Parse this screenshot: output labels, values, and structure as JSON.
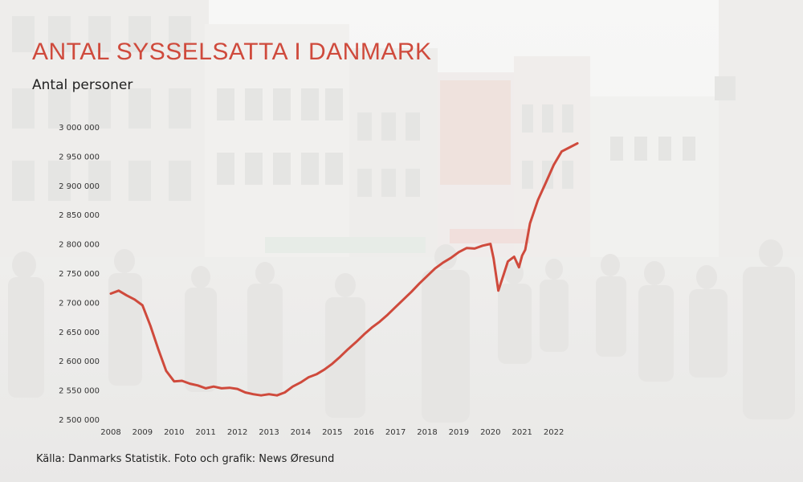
{
  "header": {
    "title": "ANTAL SYSSELSATTA I DANMARK",
    "subtitle": "Antal personer"
  },
  "footer": {
    "source": "Källa: Danmarks Statistik. Foto och grafik: News Øresund"
  },
  "colors": {
    "accent": "#cf4a3c",
    "background": "#f2f1ef"
  },
  "chart_data": {
    "type": "line",
    "title": "ANTAL SYSSELSATTA I DANMARK",
    "ylabel": "Antal personer",
    "xlabel": "",
    "ylim": [
      2500000,
      3000000
    ],
    "xlim": [
      2008,
      2022.9
    ],
    "grid": false,
    "y_ticks": [
      {
        "value": 3000000,
        "label": "3 000 000"
      },
      {
        "value": 2950000,
        "label": "2 950 000"
      },
      {
        "value": 2900000,
        "label": "2 900 000"
      },
      {
        "value": 2850000,
        "label": "2 850 000"
      },
      {
        "value": 2800000,
        "label": "2 800 000"
      },
      {
        "value": 2750000,
        "label": "2 750 000"
      },
      {
        "value": 2700000,
        "label": "2 700 000"
      },
      {
        "value": 2650000,
        "label": "2 650 000"
      },
      {
        "value": 2600000,
        "label": "2 600 000"
      },
      {
        "value": 2550000,
        "label": "2 550 000"
      },
      {
        "value": 2500000,
        "label": "2 500 000"
      }
    ],
    "x_ticks": [
      {
        "value": 2008,
        "label": "2008"
      },
      {
        "value": 2009,
        "label": "2009"
      },
      {
        "value": 2010,
        "label": "2010"
      },
      {
        "value": 2011,
        "label": "2011"
      },
      {
        "value": 2012,
        "label": "2012"
      },
      {
        "value": 2013,
        "label": "2013"
      },
      {
        "value": 2014,
        "label": "2014"
      },
      {
        "value": 2015,
        "label": "2015"
      },
      {
        "value": 2016,
        "label": "2016"
      },
      {
        "value": 2017,
        "label": "2017"
      },
      {
        "value": 2018,
        "label": "2018"
      },
      {
        "value": 2019,
        "label": "2019"
      },
      {
        "value": 2020,
        "label": "2020"
      },
      {
        "value": 2021,
        "label": "2021"
      },
      {
        "value": 2022,
        "label": "2022"
      }
    ],
    "series": [
      {
        "x": [
          2008.0,
          2008.25,
          2008.5,
          2008.75,
          2009.0,
          2009.25,
          2009.5,
          2009.75,
          2010.0,
          2010.25,
          2010.5,
          2010.75,
          2011.0,
          2011.25,
          2011.5,
          2011.75,
          2012.0,
          2012.25,
          2012.5,
          2012.75,
          2013.0,
          2013.25,
          2013.5,
          2013.75,
          2014.0,
          2014.25,
          2014.5,
          2014.75,
          2015.0,
          2015.25,
          2015.5,
          2015.75,
          2016.0,
          2016.25,
          2016.5,
          2016.75,
          2017.0,
          2017.25,
          2017.5,
          2017.75,
          2018.0,
          2018.25,
          2018.5,
          2018.75,
          2019.0,
          2019.25,
          2019.5,
          2019.75,
          2020.0,
          2020.1,
          2020.25,
          2020.4,
          2020.55,
          2020.75,
          2020.9,
          2021.0,
          2021.1,
          2021.25,
          2021.5,
          2021.75,
          2022.0,
          2022.25,
          2022.5,
          2022.75
        ],
        "values": [
          2715000,
          2720000,
          2712000,
          2705000,
          2695000,
          2660000,
          2620000,
          2583000,
          2565000,
          2566000,
          2561000,
          2558000,
          2553000,
          2556000,
          2553000,
          2554000,
          2552000,
          2546000,
          2543000,
          2541000,
          2543000,
          2541000,
          2546000,
          2556000,
          2563000,
          2572000,
          2577000,
          2585000,
          2595000,
          2607000,
          2620000,
          2632000,
          2645000,
          2657000,
          2667000,
          2679000,
          2692000,
          2705000,
          2718000,
          2732000,
          2745000,
          2758000,
          2768000,
          2776000,
          2786000,
          2793000,
          2792000,
          2797000,
          2800000,
          2775000,
          2720000,
          2745000,
          2770000,
          2778000,
          2760000,
          2780000,
          2790000,
          2835000,
          2875000,
          2905000,
          2935000,
          2958000,
          2965000,
          2972000
        ]
      }
    ]
  }
}
